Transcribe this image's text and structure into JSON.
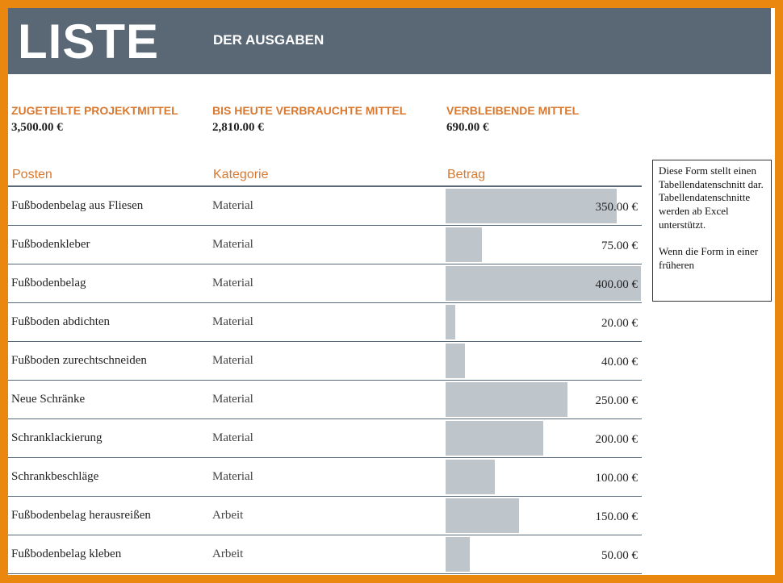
{
  "banner": {
    "title": "LISTE",
    "subtitle": "DER AUSGABEN"
  },
  "summary": [
    {
      "label": "ZUGETEILTE PROJEKTMITTEL",
      "value": "3,500.00 €"
    },
    {
      "label": "BIS HEUTE VERBRAUCHTE MITTEL",
      "value": "2,810.00 €"
    },
    {
      "label": "VERBLEIBENDE MITTEL",
      "value": "690.00 €"
    }
  ],
  "table": {
    "headers": {
      "item": "Posten",
      "category": "Kategorie",
      "amount": "Betrag"
    },
    "max_amount": 400,
    "rows": [
      {
        "item": "Fußbodenbelag aus Fliesen",
        "category": "Material",
        "amount": 350,
        "amount_text": "350.00 €"
      },
      {
        "item": "Fußbodenkleber",
        "category": "Material",
        "amount": 75,
        "amount_text": "75.00 €"
      },
      {
        "item": "Fußbodenbelag",
        "category": "Material",
        "amount": 400,
        "amount_text": "400.00 €"
      },
      {
        "item": "Fußboden abdichten",
        "category": "Material",
        "amount": 20,
        "amount_text": "20.00 €"
      },
      {
        "item": "Fußboden zurechtschneiden",
        "category": "Material",
        "amount": 40,
        "amount_text": "40.00 €"
      },
      {
        "item": "Neue Schränke",
        "category": "Material",
        "amount": 250,
        "amount_text": "250.00 €"
      },
      {
        "item": "Schranklackierung",
        "category": "Material",
        "amount": 200,
        "amount_text": "200.00 €"
      },
      {
        "item": "Schrankbeschläge",
        "category": "Material",
        "amount": 100,
        "amount_text": "100.00 €"
      },
      {
        "item": "Fußbodenbelag herausreißen",
        "category": "Arbeit",
        "amount": 150,
        "amount_text": "150.00 €"
      },
      {
        "item": "Fußbodenbelag kleben",
        "category": "Arbeit",
        "amount": 50,
        "amount_text": "50.00 €"
      }
    ]
  },
  "note": {
    "text": "Diese Form stellt einen Tabellendatenschnitt dar. Tabellendatenschnitte werden ab Excel unterstützt.\n\nWenn die Form in einer früheren"
  },
  "colors": {
    "frame": "#e9870f",
    "banner": "#5a6876",
    "accent": "#d9782f",
    "bar": "#bec6cc"
  }
}
